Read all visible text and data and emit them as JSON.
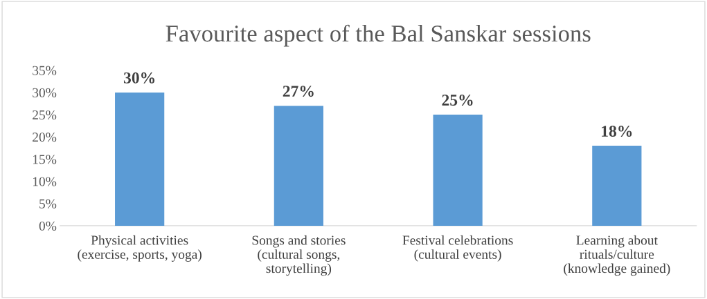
{
  "chart_data": {
    "type": "bar",
    "title": "Favourite aspect of the Bal Sanskar sessions",
    "categories": [
      "Physical activities\n(exercise, sports, yoga)",
      "Songs and stories\n(cultural songs,\nstorytelling)",
      "Festival celebrations\n(cultural events)",
      "Learning about\nrituals/culture\n(knowledge gained)"
    ],
    "values": [
      30,
      27,
      25,
      18
    ],
    "value_labels": [
      "30%",
      "27%",
      "25%",
      "18%"
    ],
    "color": "#5b9bd5",
    "ylim": [
      0,
      35
    ],
    "yticks": [
      {
        "value": 0,
        "label": "0%"
      },
      {
        "value": 5,
        "label": "5%"
      },
      {
        "value": 10,
        "label": "10%"
      },
      {
        "value": 15,
        "label": "15%"
      },
      {
        "value": 20,
        "label": "20%"
      },
      {
        "value": 25,
        "label": "25%"
      },
      {
        "value": 30,
        "label": "30%"
      },
      {
        "value": 35,
        "label": "35%"
      }
    ],
    "grid": false,
    "legend": false
  }
}
